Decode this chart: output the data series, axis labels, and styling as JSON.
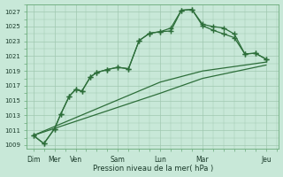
{
  "bg_color": "#c8e8d8",
  "grid_color": "#a0c8b0",
  "line_color": "#2d6e3a",
  "xlabel": "Pression niveau de la mer( hPa )",
  "ylim": [
    1008.5,
    1028.0
  ],
  "yticks": [
    1009,
    1011,
    1013,
    1015,
    1017,
    1019,
    1021,
    1023,
    1025,
    1027
  ],
  "xtick_labels": [
    "Dim",
    "Mer",
    "Ven",
    "Sam",
    "Lun",
    "Mar",
    "Jeu"
  ],
  "xtick_positions": [
    0,
    1,
    2,
    4,
    6,
    8,
    11
  ],
  "line1_x": [
    0,
    0.5,
    1.0,
    1.3,
    1.7,
    2.0,
    2.3,
    2.7,
    3.0,
    3.5,
    4.0,
    4.5,
    5.0,
    5.5,
    6.0,
    6.5,
    7.0,
    7.5,
    8.0,
    8.5,
    9.0,
    9.5,
    10.0,
    10.5,
    11.0
  ],
  "line1_y": [
    1010.3,
    1009.2,
    1011.2,
    1013.2,
    1015.6,
    1016.5,
    1016.3,
    1018.2,
    1018.8,
    1019.2,
    1019.5,
    1019.3,
    1023.1,
    1024.1,
    1024.3,
    1024.4,
    1027.2,
    1027.3,
    1025.1,
    1024.5,
    1024.0,
    1023.5,
    1021.3,
    1021.4,
    1020.6
  ],
  "line2_x": [
    0,
    0.5,
    1.0,
    1.3,
    1.7,
    2.0,
    2.3,
    2.7,
    3.0,
    3.5,
    4.0,
    4.5,
    5.0,
    5.5,
    6.0,
    6.5,
    7.0,
    7.5,
    8.0,
    8.5,
    9.0,
    9.5,
    10.0,
    10.5,
    11.0
  ],
  "line2_y": [
    1010.3,
    1009.2,
    1011.2,
    1013.2,
    1015.6,
    1016.5,
    1016.3,
    1018.2,
    1018.8,
    1019.2,
    1019.5,
    1019.3,
    1023.1,
    1024.1,
    1024.3,
    1024.8,
    1027.2,
    1027.3,
    1025.3,
    1025.0,
    1024.8,
    1024.0,
    1021.3,
    1021.4,
    1020.6
  ],
  "line3_x": [
    0,
    6,
    8,
    11
  ],
  "line3_y": [
    1010.3,
    1017.5,
    1019.0,
    1020.2
  ],
  "line4_x": [
    0,
    6,
    8,
    11
  ],
  "line4_y": [
    1010.3,
    1016.0,
    1018.0,
    1019.8
  ]
}
